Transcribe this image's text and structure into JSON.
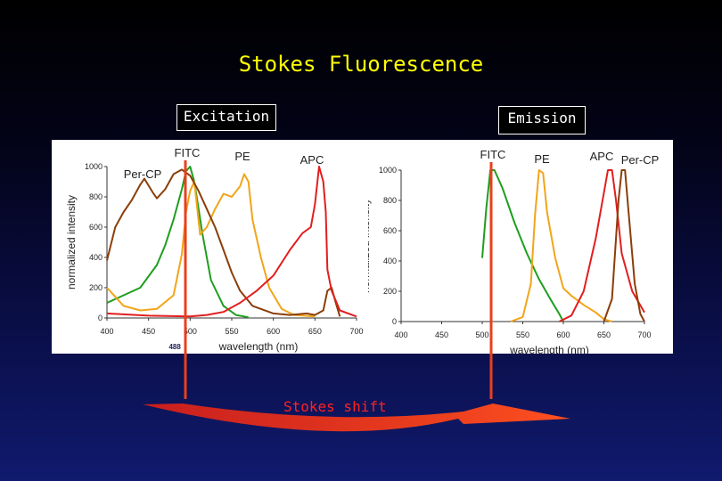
{
  "slide": {
    "title": "Stokes Fluorescence",
    "excitation_label": "Excitation",
    "emission_label": "Emission",
    "shift_label": "Stokes shift"
  },
  "chart_data": [
    {
      "type": "line",
      "title": "",
      "xlabel": "wavelength (nm)",
      "ylabel": "normalized intensity",
      "xlim": [
        400,
        700
      ],
      "ylim": [
        0,
        1000
      ],
      "xticks": [
        "400",
        "450",
        "500",
        "550",
        "600",
        "650",
        "700"
      ],
      "yticks": [
        "0",
        "200",
        "400",
        "600",
        "800",
        "1000"
      ],
      "grid": false,
      "annotations": [
        {
          "text": "488",
          "x": 488
        }
      ],
      "series": [
        {
          "name": "FITC",
          "color": "#1e9e1e",
          "points": [
            [
              400,
              100
            ],
            [
              420,
              150
            ],
            [
              440,
              200
            ],
            [
              460,
              350
            ],
            [
              470,
              480
            ],
            [
              480,
              650
            ],
            [
              490,
              850
            ],
            [
              495,
              970
            ],
            [
              500,
              1000
            ],
            [
              505,
              900
            ],
            [
              515,
              550
            ],
            [
              525,
              250
            ],
            [
              540,
              80
            ],
            [
              555,
              20
            ],
            [
              570,
              5
            ]
          ]
        },
        {
          "name": "PE",
          "color": "#f2a51a",
          "points": [
            [
              400,
              200
            ],
            [
              420,
              80
            ],
            [
              440,
              50
            ],
            [
              460,
              60
            ],
            [
              480,
              150
            ],
            [
              490,
              420
            ],
            [
              495,
              700
            ],
            [
              500,
              840
            ],
            [
              505,
              900
            ],
            [
              508,
              750
            ],
            [
              512,
              550
            ],
            [
              520,
              600
            ],
            [
              530,
              720
            ],
            [
              540,
              820
            ],
            [
              550,
              800
            ],
            [
              560,
              870
            ],
            [
              565,
              950
            ],
            [
              570,
              900
            ],
            [
              575,
              650
            ],
            [
              585,
              400
            ],
            [
              595,
              200
            ],
            [
              610,
              60
            ],
            [
              625,
              20
            ],
            [
              650,
              10
            ]
          ]
        },
        {
          "name": "Per-CP",
          "color": "#8b3e0a",
          "points": [
            [
              400,
              380
            ],
            [
              410,
              600
            ],
            [
              420,
              700
            ],
            [
              430,
              780
            ],
            [
              440,
              880
            ],
            [
              445,
              920
            ],
            [
              455,
              830
            ],
            [
              460,
              790
            ],
            [
              470,
              850
            ],
            [
              480,
              950
            ],
            [
              490,
              980
            ],
            [
              500,
              940
            ],
            [
              510,
              840
            ],
            [
              520,
              720
            ],
            [
              530,
              600
            ],
            [
              540,
              450
            ],
            [
              550,
              300
            ],
            [
              560,
              180
            ],
            [
              575,
              80
            ],
            [
              600,
              30
            ],
            [
              620,
              20
            ],
            [
              640,
              30
            ],
            [
              650,
              20
            ],
            [
              660,
              50
            ],
            [
              665,
              180
            ],
            [
              670,
              200
            ],
            [
              675,
              100
            ],
            [
              680,
              10
            ]
          ]
        },
        {
          "name": "APC",
          "color": "#e21e1e",
          "points": [
            [
              400,
              30
            ],
            [
              450,
              15
            ],
            [
              500,
              10
            ],
            [
              520,
              20
            ],
            [
              540,
              40
            ],
            [
              560,
              100
            ],
            [
              580,
              180
            ],
            [
              600,
              280
            ],
            [
              620,
              450
            ],
            [
              635,
              560
            ],
            [
              645,
              600
            ],
            [
              650,
              750
            ],
            [
              655,
              1000
            ],
            [
              660,
              900
            ],
            [
              663,
              700
            ],
            [
              665,
              320
            ],
            [
              670,
              180
            ],
            [
              680,
              50
            ],
            [
              700,
              10
            ]
          ]
        }
      ]
    },
    {
      "type": "line",
      "title": "",
      "xlabel": "wavelength (nm)",
      "ylabel": "normalized intensity",
      "xlim": [
        400,
        700
      ],
      "ylim": [
        0,
        1000
      ],
      "xticks": [
        "400",
        "450",
        "500",
        "550",
        "600",
        "650",
        "700"
      ],
      "yticks": [
        "0",
        "200",
        "400",
        "600",
        "800",
        "1000"
      ],
      "grid": false,
      "series": [
        {
          "name": "FITC",
          "color": "#1e9e1e",
          "points": [
            [
              500,
              420
            ],
            [
              505,
              750
            ],
            [
              510,
              1000
            ],
            [
              515,
              1000
            ],
            [
              525,
              880
            ],
            [
              540,
              650
            ],
            [
              555,
              450
            ],
            [
              570,
              280
            ],
            [
              585,
              140
            ],
            [
              595,
              50
            ],
            [
              600,
              0
            ]
          ]
        },
        {
          "name": "PE",
          "color": "#f2a51a",
          "points": [
            [
              535,
              0
            ],
            [
              550,
              30
            ],
            [
              560,
              250
            ],
            [
              565,
              700
            ],
            [
              570,
              1000
            ],
            [
              575,
              980
            ],
            [
              580,
              720
            ],
            [
              590,
              420
            ],
            [
              600,
              220
            ],
            [
              610,
              170
            ],
            [
              625,
              110
            ],
            [
              640,
              60
            ],
            [
              650,
              15
            ],
            [
              660,
              0
            ]
          ]
        },
        {
          "name": "APC",
          "color": "#e21e1e",
          "points": [
            [
              595,
              0
            ],
            [
              610,
              40
            ],
            [
              625,
              200
            ],
            [
              640,
              550
            ],
            [
              650,
              850
            ],
            [
              655,
              1000
            ],
            [
              660,
              1000
            ],
            [
              665,
              800
            ],
            [
              672,
              450
            ],
            [
              685,
              200
            ],
            [
              700,
              60
            ]
          ]
        },
        {
          "name": "Per-CP",
          "color": "#8b3e0a",
          "points": [
            [
              650,
              0
            ],
            [
              660,
              150
            ],
            [
              668,
              800
            ],
            [
              672,
              1000
            ],
            [
              676,
              1000
            ],
            [
              680,
              750
            ],
            [
              688,
              250
            ],
            [
              695,
              50
            ],
            [
              700,
              0
            ]
          ]
        }
      ]
    }
  ]
}
